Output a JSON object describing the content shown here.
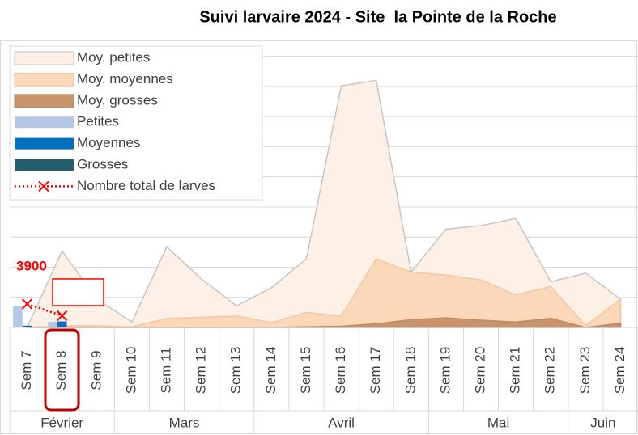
{
  "chart_data": {
    "type": "combo",
    "title": "Suivi larvaire 2024 - Site  la Pointe de la Roche",
    "categories": [
      "Sem 7",
      "Sem 8",
      "Sem 9",
      "Sem 10",
      "Sem 11",
      "Sem 12",
      "Sem 13",
      "Sem 14",
      "Sem 15",
      "Sem 16",
      "Sem 17",
      "Sem 18",
      "Sem 19",
      "Sem 20",
      "Sem 21",
      "Sem 22",
      "Sem 23",
      "Sem 24"
    ],
    "groups": [
      {
        "label": "Février",
        "count": 3
      },
      {
        "label": "Mars",
        "count": 4
      },
      {
        "label": "Avril",
        "count": 5
      },
      {
        "label": "Mai",
        "count": 4
      },
      {
        "label": "Juin",
        "count": 2
      }
    ],
    "series": [
      {
        "name": "Moy. petites",
        "kind": "area",
        "color": "#fdf1e7",
        "stroke": "#c9c4c0",
        "values": [
          0,
          12700,
          4700,
          900,
          13400,
          8000,
          3600,
          6600,
          11400,
          40100,
          41000,
          9200,
          16300,
          16900,
          18100,
          7600,
          9000,
          4700
        ]
      },
      {
        "name": "Moy. moyennes",
        "kind": "area",
        "color": "#fbd8b9",
        "stroke": "#f2c8a4",
        "values": [
          0,
          300,
          300,
          100,
          1500,
          1700,
          1900,
          800,
          2500,
          1900,
          11400,
          9200,
          8700,
          7900,
          5400,
          6800,
          300,
          4700
        ]
      },
      {
        "name": "Moy. grosses",
        "kind": "area",
        "color": "#c8946b",
        "stroke": "#c08a60",
        "values": [
          0,
          0,
          0,
          0,
          0,
          0,
          0,
          0,
          100,
          200,
          600,
          1300,
          1600,
          1200,
          900,
          1500,
          0,
          700
        ]
      },
      {
        "name": "Petites",
        "kind": "bar",
        "color": "#b4c7e7",
        "values": [
          3600,
          950,
          null,
          null,
          null,
          null,
          null,
          null,
          null,
          null,
          null,
          null,
          null,
          null,
          null,
          null,
          null,
          null
        ]
      },
      {
        "name": "Moyennes",
        "kind": "bar",
        "color": "#0070c0",
        "values": [
          300,
          1000,
          null,
          null,
          null,
          null,
          null,
          null,
          null,
          null,
          null,
          null,
          null,
          null,
          null,
          null,
          null,
          null
        ]
      },
      {
        "name": "Grosses",
        "kind": "bar",
        "color": "#255e6c",
        "values": [
          0,
          0,
          null,
          null,
          null,
          null,
          null,
          null,
          null,
          null,
          null,
          null,
          null,
          null,
          null,
          null,
          null,
          null
        ]
      },
      {
        "name": "Nombre total de larves",
        "kind": "line",
        "color": "#ff0000",
        "values": [
          3900,
          1950,
          null,
          null,
          null,
          null,
          null,
          null,
          null,
          null,
          null,
          null,
          null,
          null,
          null,
          null,
          null,
          null
        ]
      }
    ],
    "ylim": [
      0,
      47500
    ],
    "yticks": [
      0,
      5000,
      10000,
      15000,
      20000,
      25000,
      30000,
      35000,
      40000,
      45000
    ],
    "grid": true,
    "y_tick_labels": false,
    "legend": "upper left"
  }
}
